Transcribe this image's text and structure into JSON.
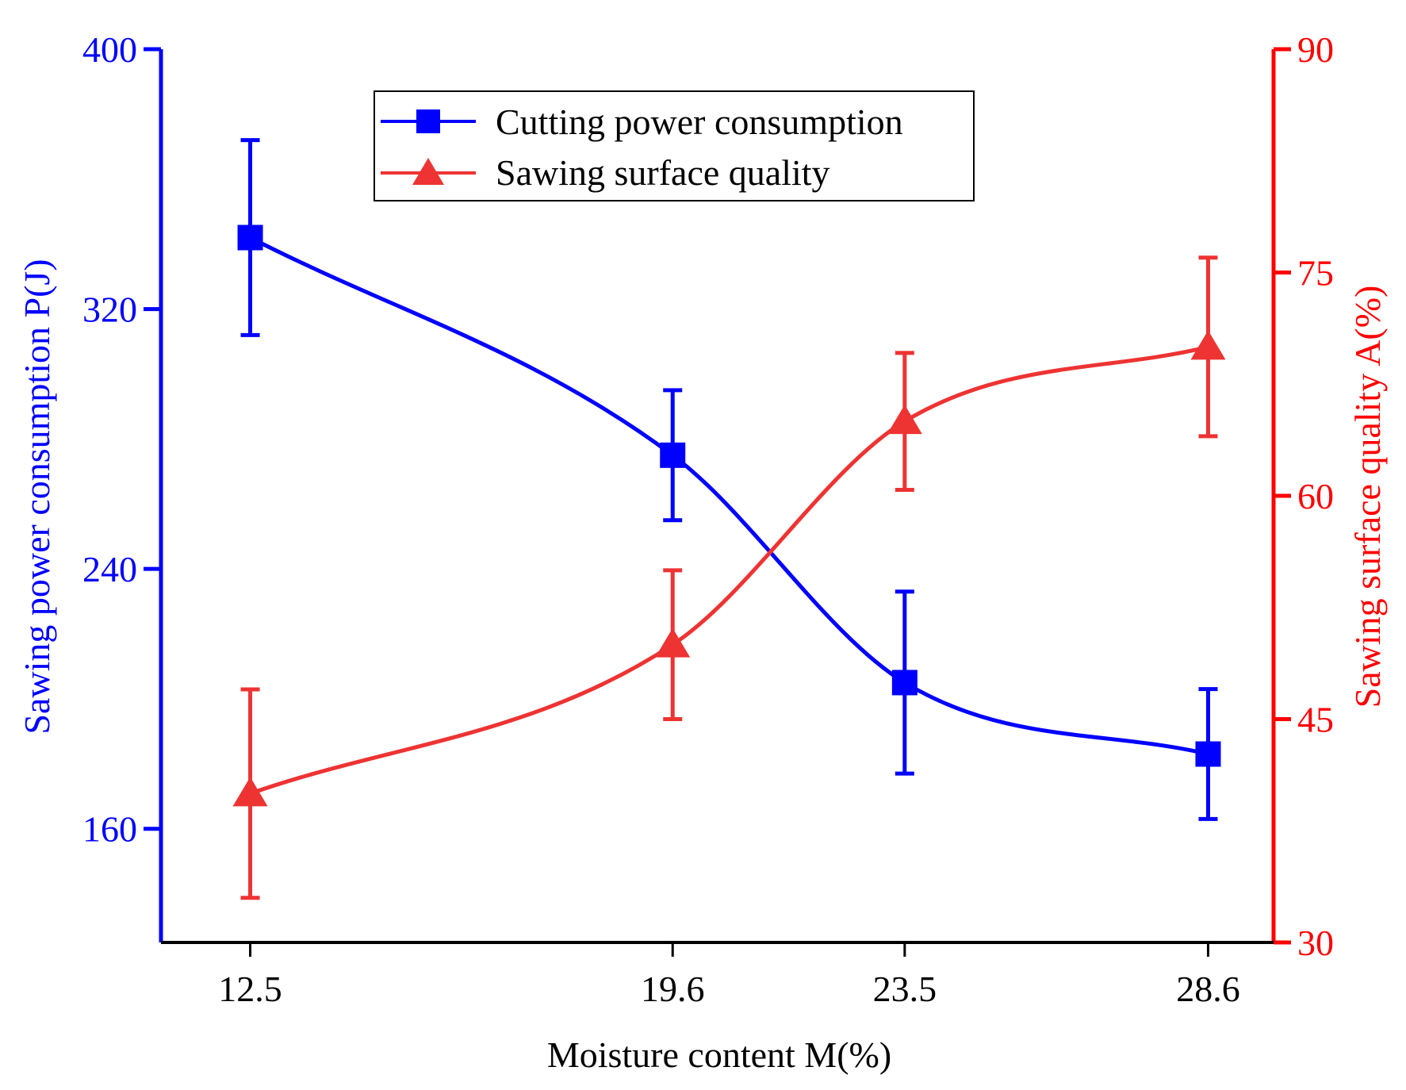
{
  "chart_data": {
    "type": "line",
    "x_label": "Moisture content M(%)",
    "x_ticks": [
      "12.5",
      "19.6",
      "23.5",
      "28.6"
    ],
    "x": [
      12.5,
      19.6,
      23.5,
      28.6
    ],
    "xlim": [
      11.0,
      29.7
    ],
    "y_left": {
      "label": "Sawing power consumption P(J)",
      "ticks": [
        "160",
        "240",
        "320",
        "400"
      ],
      "ylim": [
        125,
        400
      ],
      "color": "#0000ff"
    },
    "y_right": {
      "label": "Sawing surface quality A(%)",
      "ticks": [
        "30",
        "45",
        "60",
        "75",
        "90"
      ],
      "ylim": [
        30,
        90
      ],
      "color": "#ff0000"
    },
    "series": [
      {
        "name": "Cutting power consumption",
        "axis": "left",
        "marker": "square",
        "color": "#0000ff",
        "values": [
          342,
          275,
          205,
          183
        ],
        "error": [
          30,
          20,
          28,
          20
        ]
      },
      {
        "name": "Sawing surface quality",
        "axis": "right",
        "marker": "triangle",
        "color": "#ee3333",
        "values": [
          40,
          50,
          65,
          70
        ],
        "error": [
          7,
          5,
          4.6,
          6
        ]
      }
    ],
    "legend": {
      "entries": [
        "Cutting power consumption",
        "Sawing surface quality"
      ],
      "position": "top-center"
    },
    "grid": false
  }
}
